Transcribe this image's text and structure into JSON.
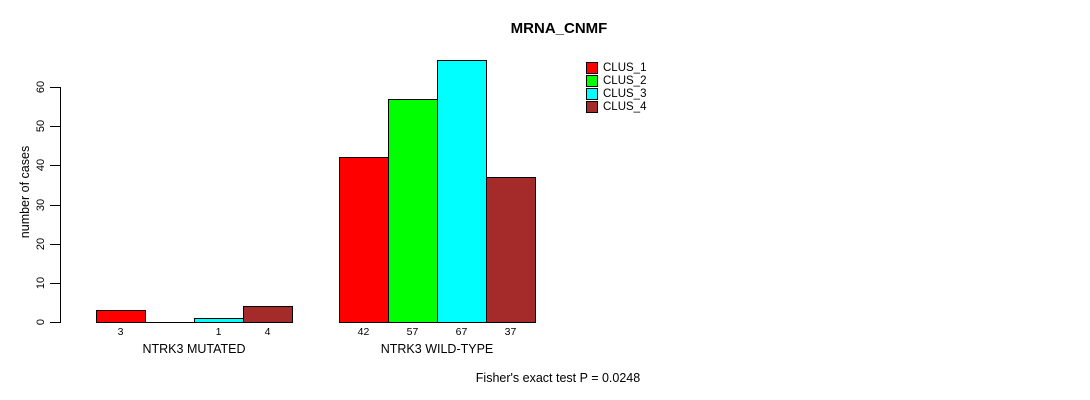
{
  "chart_data": {
    "type": "bar",
    "title": "MRNA_CNMF",
    "xlabel": "",
    "ylabel": "number of cases",
    "categories": [
      "NTRK3 MUTATED",
      "NTRK3 WILD-TYPE"
    ],
    "series": [
      {
        "name": "CLUS_1",
        "color": "#ff0000",
        "values": [
          3,
          42
        ]
      },
      {
        "name": "CLUS_2",
        "color": "#00ff00",
        "values": [
          0,
          57
        ]
      },
      {
        "name": "CLUS_3",
        "color": "#00ffff",
        "values": [
          1,
          67
        ]
      },
      {
        "name": "CLUS_4",
        "color": "#a52a2a",
        "values": [
          4,
          37
        ]
      }
    ],
    "bar_value_labels": [
      [
        "3",
        "",
        "1",
        "4"
      ],
      [
        "42",
        "57",
        "67",
        "37"
      ]
    ],
    "ylim": [
      0,
      60
    ],
    "yticks": [
      0,
      10,
      20,
      30,
      40,
      50,
      60
    ],
    "grid": false,
    "legend_position": "top-right",
    "annotation": "Fisher's exact test P = 0.0248"
  }
}
